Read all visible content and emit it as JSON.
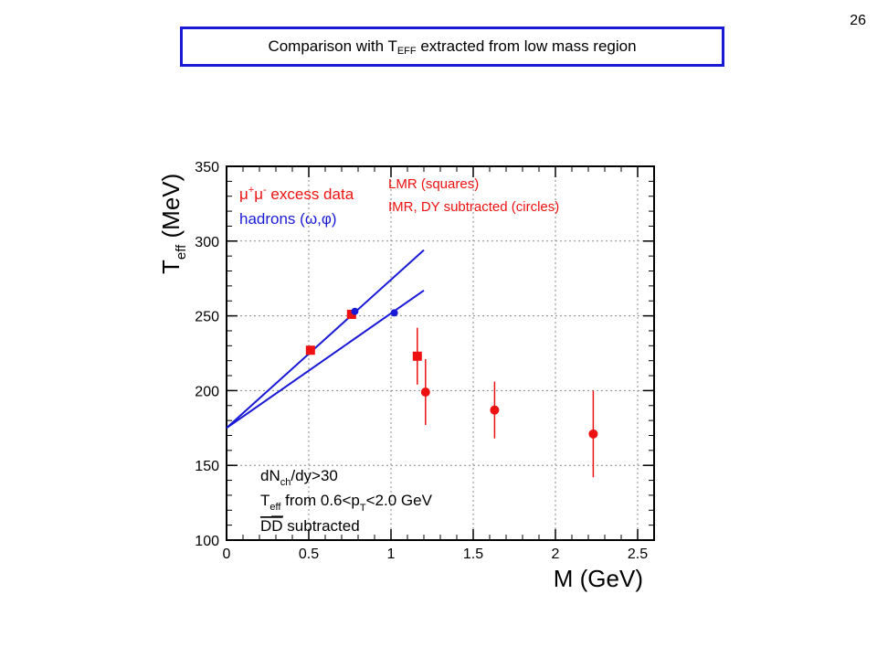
{
  "slide_number": "26",
  "title": {
    "prefix": "Comparison with T",
    "subscript": "EFF",
    "suffix": " extracted from low mass region"
  },
  "colors": {
    "title_border": "#1a1ad6",
    "blue": "#1a1ad6",
    "red": "#ee1111",
    "grid": "#888888"
  },
  "chart_data": {
    "type": "scatter",
    "xlabel": "M (GeV)",
    "ylabel_main": "T",
    "ylabel_sub": "eff",
    "ylabel_unit": " (MeV)",
    "xlim": [
      0,
      2.6
    ],
    "ylim": [
      100,
      350
    ],
    "x_ticks": [
      {
        "value": 0,
        "label": "0"
      },
      {
        "value": 0.5,
        "label": "0.5"
      },
      {
        "value": 1,
        "label": "1"
      },
      {
        "value": 1.5,
        "label": "1.5"
      },
      {
        "value": 2,
        "label": "2"
      },
      {
        "value": 2.5,
        "label": "2.5"
      }
    ],
    "y_ticks": [
      {
        "value": 100,
        "label": "100"
      },
      {
        "value": 150,
        "label": "150"
      },
      {
        "value": 200,
        "label": "200"
      },
      {
        "value": 250,
        "label": "250"
      },
      {
        "value": 300,
        "label": "300"
      },
      {
        "value": 350,
        "label": "350"
      }
    ],
    "grid": true,
    "legend_left": {
      "line1_mu": "μ",
      "line1_plus": "+",
      "line1_mu2": "μ",
      "line1_minus": "-",
      "line1_rest": " excess data",
      "line2": "hadrons (ω,φ)"
    },
    "legend_right": {
      "line1": "LMR (squares)",
      "line2": "IMR, DY subtracted (circles)"
    },
    "annotations": {
      "line1_a": "dN",
      "line1_sub": "ch",
      "line1_b": "/dy>30",
      "line2_a": "T",
      "line2_sub1": "eff",
      "line2_b": " from 0.6<p",
      "line2_sub2": "T",
      "line2_c": "<2.0 GeV",
      "line3_a": "DD",
      "line3_b": " subtracted"
    },
    "series": [
      {
        "name": "LMR (squares)",
        "marker": "square",
        "color": "#ee1111",
        "points": [
          {
            "x": 0.51,
            "y": 227,
            "yerr": 3
          },
          {
            "x": 0.76,
            "y": 251,
            "yerr": 3
          },
          {
            "x": 1.16,
            "y": 223,
            "yerr": 19
          }
        ]
      },
      {
        "name": "IMR, DY subtracted (circles)",
        "marker": "circle",
        "color": "#ee1111",
        "points": [
          {
            "x": 1.21,
            "y": 199,
            "yerr": 22
          },
          {
            "x": 1.63,
            "y": 187,
            "yerr": 19
          },
          {
            "x": 2.23,
            "y": 171,
            "yerr": 29
          }
        ]
      },
      {
        "name": "hadrons (ω,φ)",
        "marker": "circle",
        "color": "#1a1ad6",
        "points": [
          {
            "x": 0.78,
            "y": 253
          },
          {
            "x": 1.02,
            "y": 252
          }
        ]
      }
    ],
    "fit_lines": [
      {
        "color": "#1a1ad6",
        "from": {
          "x": 0,
          "y": 175
        },
        "to": {
          "x": 1.2,
          "y": 294
        }
      },
      {
        "color": "#1a1ad6",
        "from": {
          "x": 0,
          "y": 175
        },
        "to": {
          "x": 1.2,
          "y": 267
        }
      }
    ]
  }
}
